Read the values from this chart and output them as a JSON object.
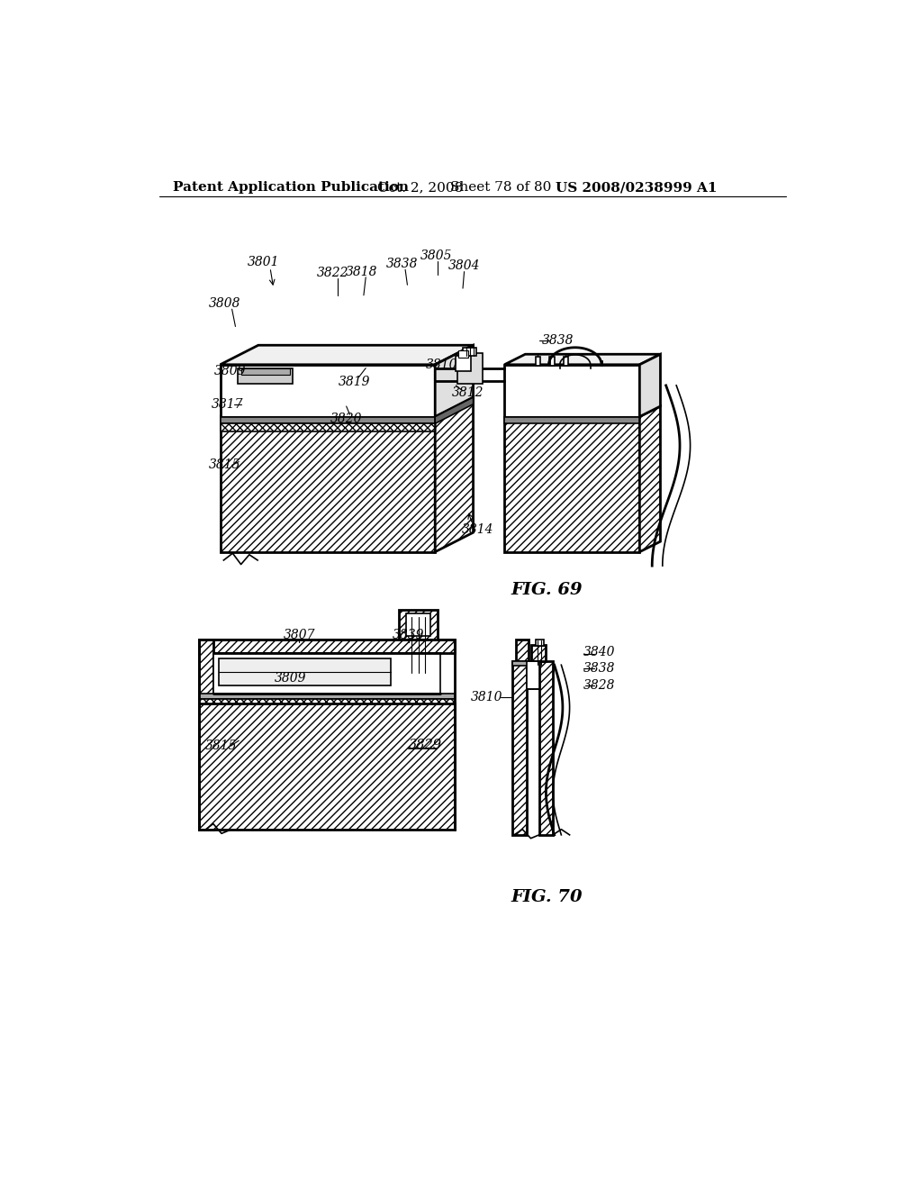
{
  "background_color": "#ffffff",
  "header_text": "Patent Application Publication",
  "header_date": "Oct. 2, 2008",
  "header_sheet": "Sheet 78 of 80",
  "header_patent": "US 2008/0238999 A1",
  "fig69_label": "FIG. 69",
  "fig70_label": "FIG. 70"
}
